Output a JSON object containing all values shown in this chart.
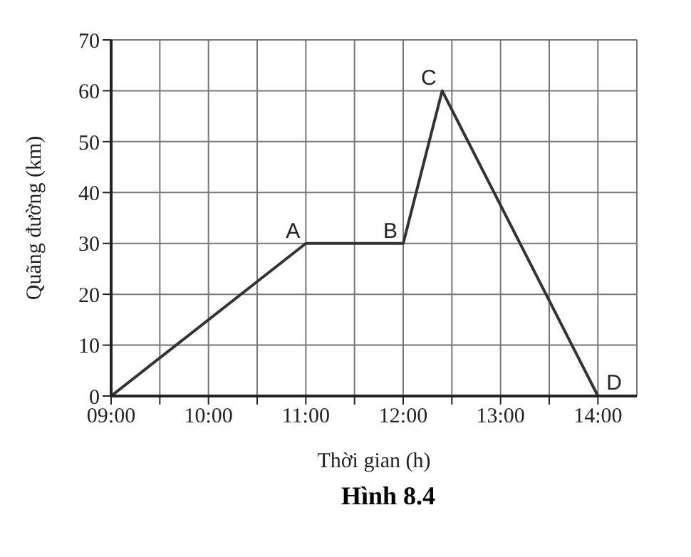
{
  "chart_data": {
    "type": "line",
    "xlabel": "Thời gian (h)",
    "ylabel": "Quãng đường (km)",
    "x": [
      9,
      11,
      12,
      12.4,
      14
    ],
    "series": [
      {
        "color": "#333333",
        "values": [
          0,
          30,
          30,
          60,
          0
        ]
      }
    ],
    "xlim": [
      9,
      14.4
    ],
    "xticks": [
      {
        "value": 9,
        "label": "09:00"
      },
      {
        "value": 9.5,
        "label": null
      },
      {
        "value": 10,
        "label": "10:00"
      },
      {
        "value": 10.5,
        "label": null
      },
      {
        "value": 11,
        "label": "11:00"
      },
      {
        "value": 11.5,
        "label": null
      },
      {
        "value": 12,
        "label": "12:00"
      },
      {
        "value": 12.5,
        "label": null
      },
      {
        "value": 13,
        "label": "13:00"
      },
      {
        "value": 13.5,
        "label": null
      },
      {
        "value": 14,
        "label": "14:00"
      }
    ],
    "ylim": [
      0,
      70
    ],
    "yticks": [
      0,
      10,
      20,
      30,
      40,
      50,
      60,
      70
    ],
    "grid": true,
    "marker": "none",
    "line_style": "solid",
    "annotations": [
      {
        "text": "A",
        "x": 11,
        "y": 30
      },
      {
        "text": "B",
        "x": 12,
        "y": 30
      },
      {
        "text": "C",
        "x": 12.4,
        "y": 60
      },
      {
        "text": "D",
        "x": 14,
        "y": 0
      },
      "Hình 8.4"
    ]
  }
}
